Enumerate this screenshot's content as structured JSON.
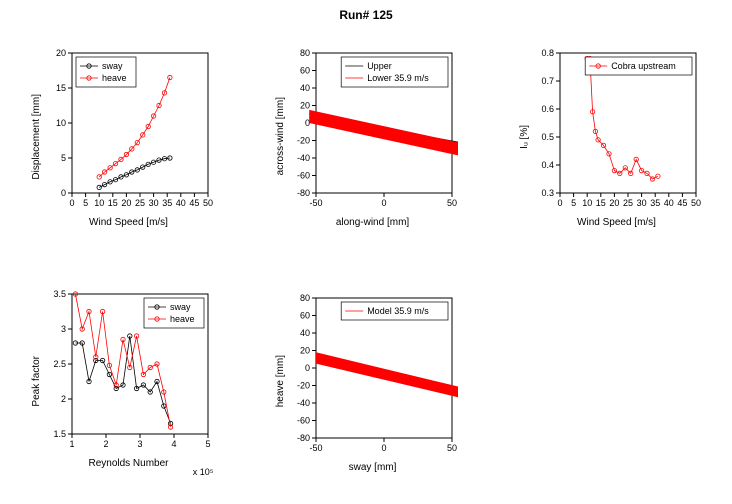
{
  "title": "Run# 125",
  "panels": {
    "p1": {
      "ylabel": "Displacement [mm]",
      "xlabel": "Wind Speed [m/s]",
      "xlim": [
        0,
        50
      ],
      "xticks": [
        0,
        5,
        10,
        15,
        20,
        25,
        30,
        35,
        40,
        45,
        50
      ],
      "ylim": [
        0,
        20
      ],
      "yticks": [
        0,
        5,
        10,
        15,
        20
      ],
      "legend": [
        "sway",
        "heave"
      ],
      "legend_colors": [
        "#000000",
        "#ff0000"
      ],
      "legend_pos": "nw",
      "sway_x": [
        10,
        12,
        14,
        16,
        18,
        20,
        22,
        24,
        26,
        28,
        30,
        32,
        34,
        36
      ],
      "sway_y": [
        0.8,
        1.2,
        1.6,
        1.9,
        2.3,
        2.6,
        3.0,
        3.3,
        3.7,
        4.1,
        4.4,
        4.7,
        4.9,
        5.0
      ],
      "heave_x": [
        10,
        12,
        14,
        16,
        18,
        20,
        22,
        24,
        26,
        28,
        30,
        32,
        34,
        36
      ],
      "heave_y": [
        2.3,
        3.0,
        3.6,
        4.2,
        4.8,
        5.5,
        6.3,
        7.2,
        8.3,
        9.5,
        11.0,
        12.5,
        14.3,
        16.5
      ]
    },
    "p2": {
      "ylabel": "across-wind [mm]",
      "xlabel": "along-wind [mm]",
      "xlim": [
        -50,
        50
      ],
      "xticks": [
        -50,
        0,
        50
      ],
      "ylim": [
        -80,
        80
      ],
      "yticks": [
        -80,
        -60,
        -40,
        -20,
        0,
        20,
        40,
        60,
        80
      ],
      "legend": [
        "Upper",
        "Lower 35.9 m/s"
      ],
      "legend_colors": [
        "#000000",
        "#ff0000"
      ],
      "legend_pos": "ne",
      "upper_poly": "-55,10 78,-28 78,-38 -50,0",
      "lower_poly": "-55,0 78,-45 78,-30 -55,15"
    },
    "p3": {
      "ylabel": "Iᵤ [%]",
      "xlabel": "Wind Speed [m/s]",
      "xlim": [
        0,
        50
      ],
      "xticks": [
        0,
        5,
        10,
        15,
        20,
        25,
        30,
        35,
        40,
        45,
        50
      ],
      "ylim": [
        0.3,
        0.8
      ],
      "yticks": [
        0.3,
        0.4,
        0.5,
        0.6,
        0.7,
        0.8
      ],
      "legend": [
        "Cobra upstream"
      ],
      "legend_colors": [
        "#ff0000"
      ],
      "legend_pos": "ne",
      "data_x": [
        10,
        11,
        12,
        13,
        14,
        16,
        18,
        20,
        22,
        24,
        26,
        28,
        30,
        32,
        34,
        36
      ],
      "data_y": [
        0.78,
        0.78,
        0.59,
        0.52,
        0.49,
        0.47,
        0.44,
        0.38,
        0.37,
        0.39,
        0.37,
        0.42,
        0.38,
        0.37,
        0.35,
        0.36
      ]
    },
    "p4": {
      "ylabel": "Peak factor",
      "xlabel": "Reynolds Number",
      "xlim": [
        1,
        5
      ],
      "xticks": [
        1,
        2,
        3,
        4,
        5
      ],
      "ylim": [
        1.5,
        3.5
      ],
      "yticks": [
        1.5,
        2.0,
        2.5,
        3.0,
        3.5
      ],
      "expo": "x 10⁵",
      "legend": [
        "sway",
        "heave"
      ],
      "legend_colors": [
        "#000000",
        "#ff0000"
      ],
      "legend_pos": "ne",
      "sway_x": [
        1.1,
        1.3,
        1.5,
        1.7,
        1.9,
        2.1,
        2.3,
        2.5,
        2.7,
        2.9,
        3.1,
        3.3,
        3.5,
        3.7,
        3.9
      ],
      "sway_y": [
        2.8,
        2.8,
        2.25,
        2.55,
        2.55,
        2.35,
        2.15,
        2.2,
        2.9,
        2.15,
        2.2,
        2.1,
        2.25,
        1.9,
        1.65
      ],
      "heave_x": [
        1.1,
        1.3,
        1.5,
        1.7,
        1.9,
        2.1,
        2.3,
        2.5,
        2.7,
        2.9,
        3.1,
        3.3,
        3.5,
        3.7,
        3.9
      ],
      "heave_y": [
        3.5,
        3.0,
        3.25,
        2.6,
        3.25,
        2.48,
        2.2,
        2.85,
        2.45,
        2.9,
        2.35,
        2.45,
        2.5,
        2.1,
        1.6
      ]
    },
    "p5": {
      "ylabel": "heave [mm]",
      "xlabel": "sway [mm]",
      "xlim": [
        -50,
        50
      ],
      "xticks": [
        -50,
        0,
        50
      ],
      "ylim": [
        -80,
        80
      ],
      "yticks": [
        -80,
        -60,
        -40,
        -20,
        0,
        20,
        40,
        60,
        80
      ],
      "legend": [
        "Model 35.9 m/s"
      ],
      "legend_colors": [
        "#ff0000"
      ],
      "legend_pos": "ne",
      "poly": "-50,5 78,-42 78,-30 -50,18"
    }
  },
  "plot": {
    "w": 170,
    "h": 170,
    "ml": 28,
    "mr": 6,
    "mt": 8,
    "mb": 22,
    "border": "#000000",
    "bg": "#ffffff"
  }
}
